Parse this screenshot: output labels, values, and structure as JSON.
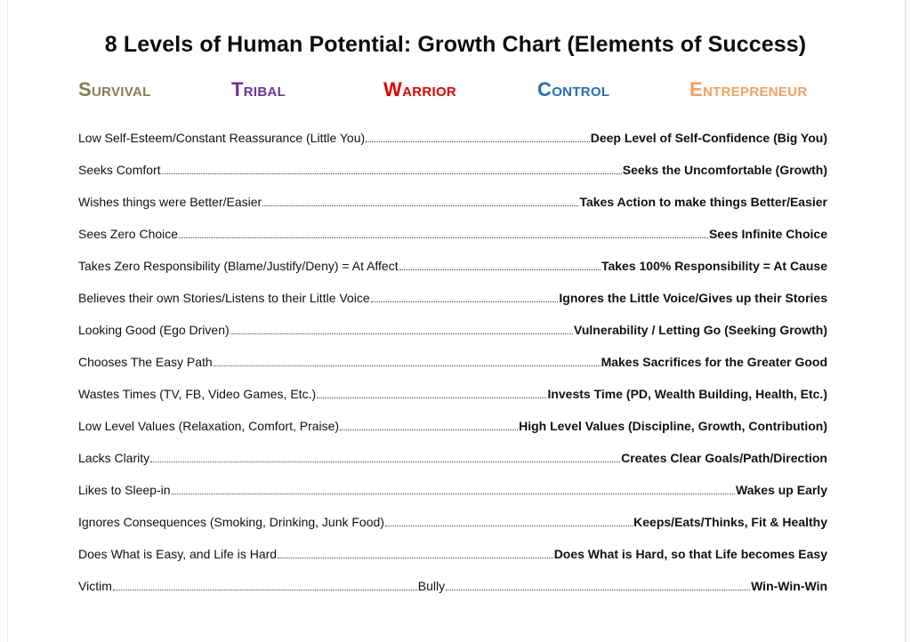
{
  "document": {
    "title": "8 Levels of Human Potential: Growth Chart (Elements of Success)"
  },
  "levels": [
    {
      "label": "Survival",
      "color": "#8a7d4e"
    },
    {
      "label": "Tribal",
      "color": "#7030a0"
    },
    {
      "label": "Warrior",
      "color": "#e00000"
    },
    {
      "label": "Control",
      "color": "#1f6fbf"
    },
    {
      "label": "Entrepreneur",
      "color": "#f5a05a"
    }
  ],
  "rows": [
    {
      "left": "Low Self-Esteem/Constant Reassurance (Little You)",
      "right": "Deep Level of Self-Confidence (Big You)"
    },
    {
      "left": "Seeks Comfort",
      "right": "Seeks the Uncomfortable (Growth)"
    },
    {
      "left": "Wishes things were Better/Easier",
      "right": "Takes Action to make things Better/Easier"
    },
    {
      "left": "Sees Zero Choice",
      "right": "Sees Infinite Choice"
    },
    {
      "left": "Takes Zero Responsibility (Blame/Justify/Deny) = At Affect",
      "right": "Takes 100% Responsibility = At Cause"
    },
    {
      "left": "Believes their own Stories/Listens to their Little Voice",
      "right": "Ignores the Little Voice/Gives up their Stories"
    },
    {
      "left": "Looking Good (Ego Driven)",
      "right": "Vulnerability / Letting Go (Seeking Growth)"
    },
    {
      "left": "Chooses The Easy Path",
      "right": "Makes Sacrifices for the Greater Good"
    },
    {
      "left": "Wastes Times (TV, FB, Video Games, Etc.)",
      "right": "Invests Time (PD, Wealth Building, Health, Etc.)"
    },
    {
      "left": "Low Level Values (Relaxation, Comfort, Praise)",
      "right": "High Level Values (Discipline, Growth, Contribution)"
    },
    {
      "left": "Lacks Clarity",
      "right": "Creates Clear Goals/Path/Direction"
    },
    {
      "left": "Likes to Sleep-in",
      "right": "Wakes up Early"
    },
    {
      "left": "Ignores Consequences (Smoking, Drinking, Junk Food)",
      "right": "Keeps/Eats/Thinks, Fit & Healthy"
    },
    {
      "left": "Does What is Easy, and Life is Hard",
      "right": "Does What is Hard, so that Life becomes Easy"
    }
  ],
  "final_row": {
    "left": "Victim",
    "middle": "Bully",
    "right": "Win-Win-Win"
  }
}
